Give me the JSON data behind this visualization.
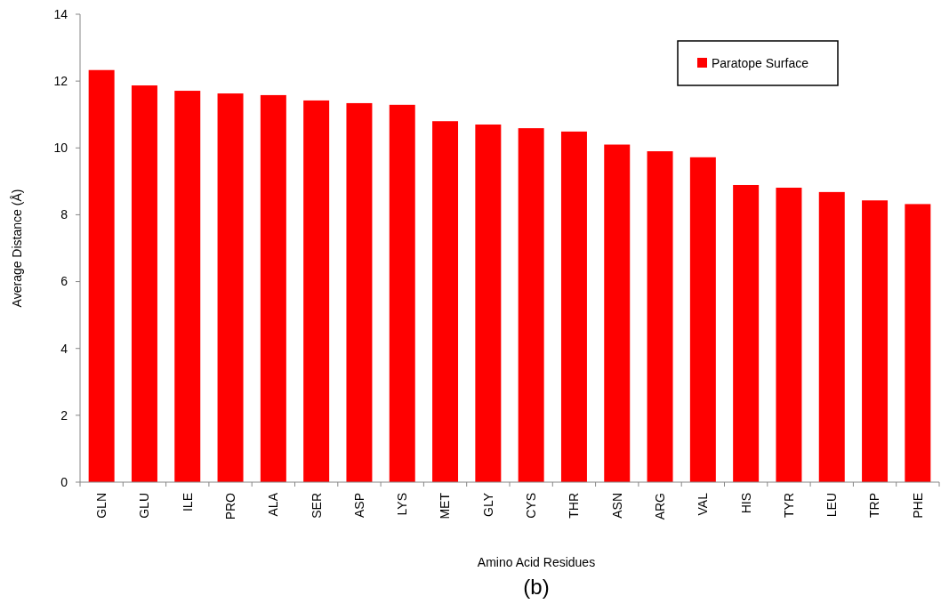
{
  "chart_data": {
    "type": "bar",
    "xlabel": "Amino Acid Residues",
    "ylabel": "Average Distance (Å)",
    "annotations": [
      "(b)"
    ],
    "categories": [
      "GLN",
      "GLU",
      "ILE",
      "PRO",
      "ALA",
      "SER",
      "ASP",
      "LYS",
      "MET",
      "GLY",
      "CYS",
      "THR",
      "ASN",
      "ARG",
      "VAL",
      "HIS",
      "TYR",
      "LEU",
      "TRP",
      "PHE"
    ],
    "series": [
      {
        "name": "Paratope Surface",
        "color": "#ff0000",
        "values": [
          12.33,
          11.87,
          11.71,
          11.63,
          11.58,
          11.42,
          11.34,
          11.29,
          10.8,
          10.7,
          10.59,
          10.49,
          10.1,
          9.9,
          9.72,
          8.89,
          8.81,
          8.68,
          8.43,
          8.32
        ]
      }
    ],
    "ylim": [
      0,
      14
    ],
    "yticks": [
      0,
      2,
      4,
      6,
      8,
      10,
      12,
      14
    ],
    "grid": false,
    "legend": "top right"
  }
}
